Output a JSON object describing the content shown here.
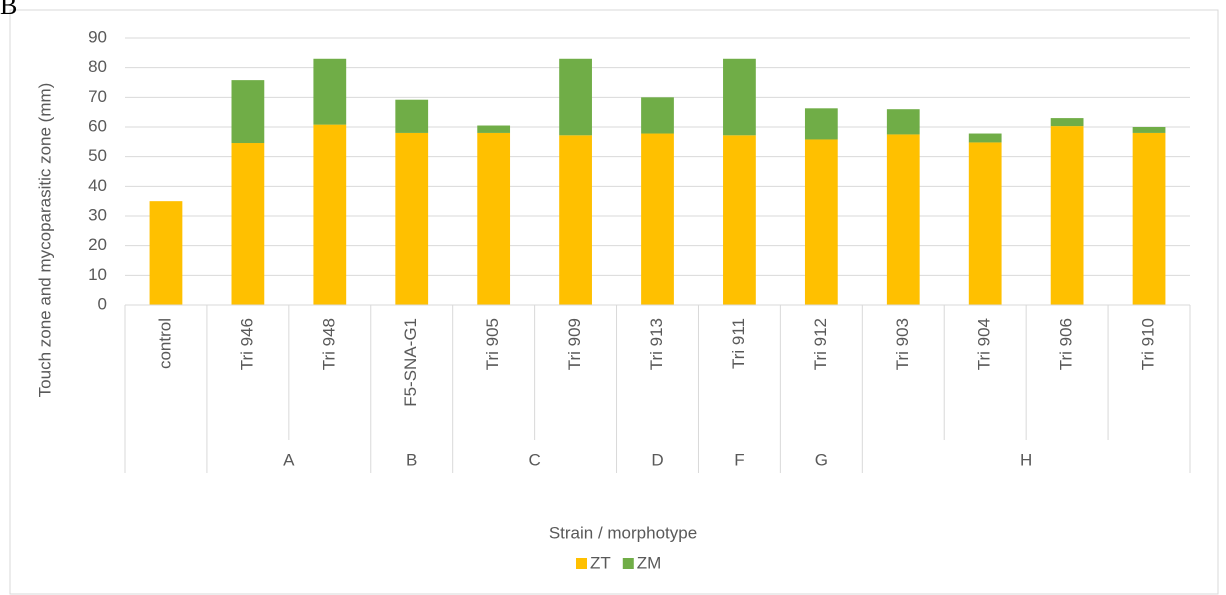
{
  "panel_label": "B",
  "chart_data": {
    "type": "stacked_bar",
    "y_label": "Touch zone and mycoparasitic zone (mm)",
    "x_label": "Strain / morphotype",
    "categories": [
      "control",
      "Tri 946",
      "Tri 948",
      "F5-SNA-G1",
      "Tri 905",
      "Tri 909",
      "Tri 913",
      "Tri 911",
      "Tri 912",
      "Tri 903",
      "Tri 904",
      "Tri 906",
      "Tri 910"
    ],
    "groups": [
      null,
      "A",
      "A",
      "B",
      "C",
      "C",
      "D",
      "F",
      "G",
      "H",
      "H",
      "H",
      "H"
    ],
    "series": [
      {
        "name": "ZT",
        "color": "#ffc000",
        "values": [
          35,
          54.6,
          60.8,
          58,
          58,
          57.2,
          57.8,
          57.2,
          55.8,
          57.5,
          54.8,
          60.3,
          58
        ]
      },
      {
        "name": "ZM",
        "color": "#70ad47",
        "values": [
          0,
          21.2,
          22.2,
          11.2,
          2.5,
          25.8,
          12.2,
          25.8,
          10.5,
          8.5,
          3,
          2.7,
          2
        ]
      }
    ],
    "ylim": [
      0,
      90
    ],
    "yticks": [
      0,
      10,
      20,
      30,
      40,
      50,
      60,
      70,
      80,
      90
    ],
    "grid": true,
    "legend": "bottom"
  }
}
